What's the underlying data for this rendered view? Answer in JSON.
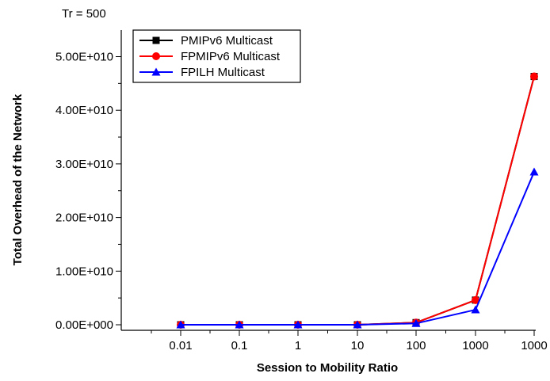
{
  "chart_data": {
    "type": "line",
    "corner_label": "Tr = 500",
    "xlabel": "Session to Mobility Ratio",
    "ylabel": "Total Overhead of the Network",
    "categories": [
      "0.01",
      "0.1",
      "1",
      "10",
      "100",
      "1000",
      "1000"
    ],
    "y_ticks": [
      {
        "value": 0,
        "label": "0.00E+000"
      },
      {
        "value": 10000000000,
        "label": "1.00E+010"
      },
      {
        "value": 20000000000,
        "label": "2.00E+010"
      },
      {
        "value": 30000000000,
        "label": "3.00E+010"
      },
      {
        "value": 40000000000,
        "label": "4.00E+010"
      },
      {
        "value": 50000000000,
        "label": "5.00E+010"
      }
    ],
    "ylim": [
      -2000000000,
      55000000000
    ],
    "legend_position": "top-left",
    "series": [
      {
        "name": "PMIPv6 Multicast",
        "color": "#000000",
        "marker": "square",
        "values": [
          0,
          0,
          0,
          0,
          400000000,
          4600000000,
          46300000000
        ]
      },
      {
        "name": "FPMIPv6 Multicast",
        "color": "#ff0000",
        "marker": "circle",
        "values": [
          0,
          0,
          0,
          0,
          400000000,
          4600000000,
          46300000000
        ]
      },
      {
        "name": "FPILH Multicast",
        "color": "#0000ff",
        "marker": "triangle",
        "values": [
          0,
          0,
          0,
          0,
          250000000,
          2800000000,
          28500000000
        ]
      }
    ]
  }
}
